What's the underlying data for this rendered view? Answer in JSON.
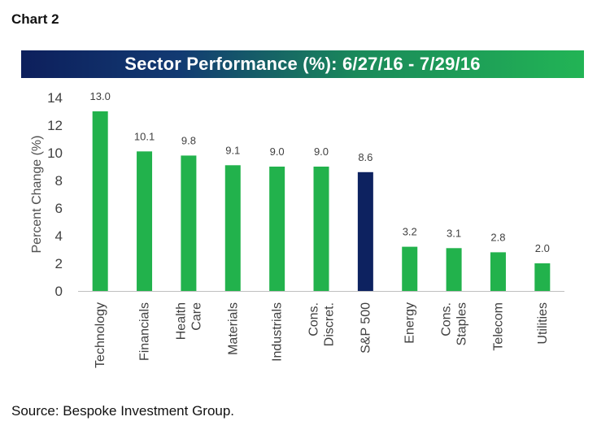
{
  "header": {
    "chart_label": "Chart 2"
  },
  "footer": {
    "source": "Source: Bespoke Investment Group."
  },
  "colors": {
    "sector_bar": "#22b24c",
    "benchmark_bar": "#0d2260",
    "banner_start": "#0d1f5c",
    "banner_end": "#22b455"
  },
  "chart_data": {
    "type": "bar",
    "title": "Sector Performance (%): 6/27/16 - 7/29/16",
    "ylabel": "Percent Change (%)",
    "xlabel": "",
    "ylim": [
      0,
      14
    ],
    "yticks": [
      0,
      2,
      4,
      6,
      8,
      10,
      12,
      14
    ],
    "grid": false,
    "legend": "none",
    "categories": [
      [
        "Technology"
      ],
      [
        "Financials"
      ],
      [
        "Health",
        "Care"
      ],
      [
        "Materials"
      ],
      [
        "Industrials"
      ],
      [
        "Cons.",
        "Discret."
      ],
      [
        "S&P 500"
      ],
      [
        "Energy"
      ],
      [
        "Cons.",
        "Staples"
      ],
      [
        "Telecom"
      ],
      [
        "Utilities"
      ]
    ],
    "values": [
      13.0,
      10.1,
      9.8,
      9.1,
      9.0,
      9.0,
      8.6,
      3.2,
      3.1,
      2.8,
      2.0
    ],
    "value_labels": [
      "13.0",
      "10.1",
      "9.8",
      "9.1",
      "9.0",
      "9.0",
      "8.6",
      "3.2",
      "3.1",
      "2.8",
      "2.0"
    ],
    "highlight_category": "S&P 500"
  }
}
